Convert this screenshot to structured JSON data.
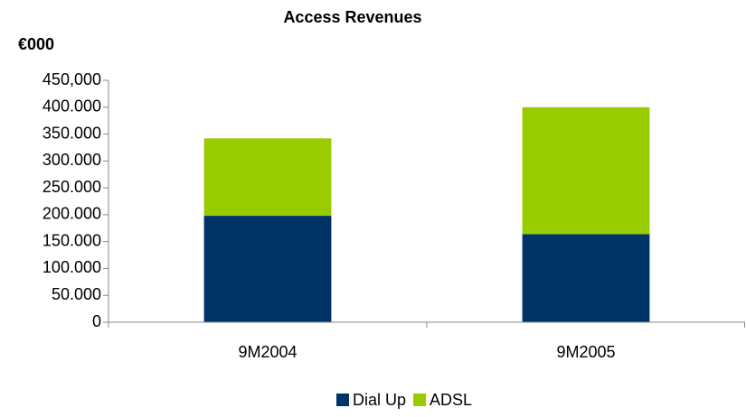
{
  "chart_data": {
    "type": "stacked_bar",
    "title": "Access Revenues",
    "y_label": "€000",
    "categories": [
      "9M2004",
      "9M2005"
    ],
    "series": [
      {
        "name": "Dial Up",
        "color": "#003366",
        "values": [
          198000,
          164000
        ]
      },
      {
        "name": "ADSL",
        "color": "#99cc00",
        "values": [
          144000,
          236000
        ]
      }
    ],
    "ylim": [
      0,
      450000
    ],
    "yticks": [
      0,
      {
        "value": 50000,
        "label": "50.000"
      },
      {
        "value": 100000,
        "label": "100.000"
      },
      {
        "value": 150000,
        "label": "150.000"
      },
      {
        "value": 200000,
        "label": "200.000"
      },
      {
        "value": 250000,
        "label": "250.000"
      },
      {
        "value": 300000,
        "label": "300.000"
      },
      {
        "value": 350000,
        "label": "350.000"
      },
      {
        "value": 400000,
        "label": "400.000"
      },
      {
        "value": 450000,
        "label": "450,000"
      }
    ],
    "legend": "bottom"
  }
}
